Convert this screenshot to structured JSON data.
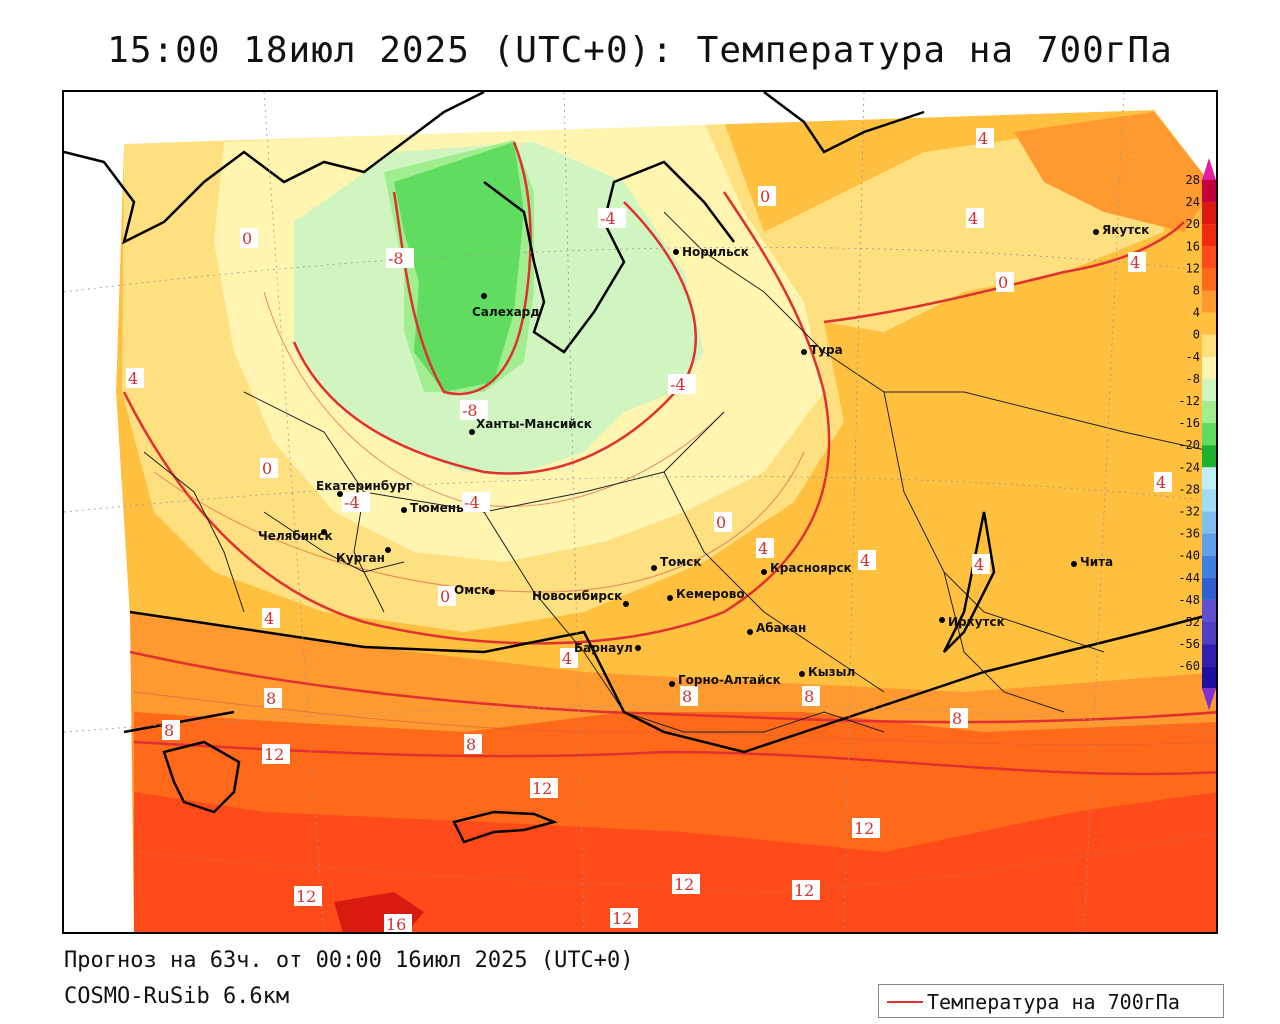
{
  "header": {
    "title": "15:00 18июл 2025 (UTC+0): Температура на 700гПа"
  },
  "footer": {
    "forecast": "Прогноз на 63ч. от 00:00 16июл 2025 (UTC+0)",
    "model": "COSMO-RuSib 6.6км"
  },
  "legend": {
    "label": "Температура на 700гПа",
    "line_color": "#e03030"
  },
  "colorbar": {
    "ticks": [
      "28",
      "24",
      "20",
      "16",
      "12",
      "8",
      "4",
      "0",
      "-4",
      "-8",
      "-12",
      "-16",
      "-20",
      "-24",
      "-28",
      "-32",
      "-36",
      "-40",
      "-44",
      "-48",
      "-52",
      "-56",
      "-60"
    ],
    "colors": [
      "#c0003a",
      "#d81a10",
      "#f02a10",
      "#ff4a1a",
      "#ff6a1a",
      "#ff9a30",
      "#ffc040",
      "#ffe080",
      "#fff5b0",
      "#d0f5c0",
      "#a0ee90",
      "#60dd60",
      "#20b030",
      "#c0eefa",
      "#a0dcf5",
      "#80c0f0",
      "#60a0ea",
      "#4080e0",
      "#3060d0",
      "#6050d0",
      "#5040c0",
      "#3020b0",
      "#2010a0"
    ],
    "top_arrow_color": "#e020a0",
    "bottom_arrow_color": "#8030d0"
  },
  "cities": [
    {
      "name": "Норильск"
    },
    {
      "name": "Якутск"
    },
    {
      "name": "Салехард"
    },
    {
      "name": "Тура"
    },
    {
      "name": "Ханты-Мансийск"
    },
    {
      "name": "Екатеринбург"
    },
    {
      "name": "Тюмень"
    },
    {
      "name": "Челябинск"
    },
    {
      "name": "Курган"
    },
    {
      "name": "Омск"
    },
    {
      "name": "Новосибирск"
    },
    {
      "name": "Томск"
    },
    {
      "name": "Кемерово"
    },
    {
      "name": "Красноярск"
    },
    {
      "name": "Абакан"
    },
    {
      "name": "Барнаул"
    },
    {
      "name": "Горно-Алтайск"
    },
    {
      "name": "Кызыл"
    },
    {
      "name": "Иркутск"
    },
    {
      "name": "Чита"
    }
  ],
  "isotherm_labels": [
    "4",
    "0",
    "4",
    "-8",
    "0",
    "-4",
    "4",
    "4",
    "0",
    "-4",
    "-8",
    "-4",
    "0",
    "-4",
    "0",
    "4",
    "0",
    "4",
    "4",
    "4",
    "4",
    "4",
    "8",
    "8",
    "12",
    "8",
    "8",
    "8",
    "8",
    "12",
    "12",
    "12",
    "12",
    "12",
    "12",
    "16"
  ]
}
